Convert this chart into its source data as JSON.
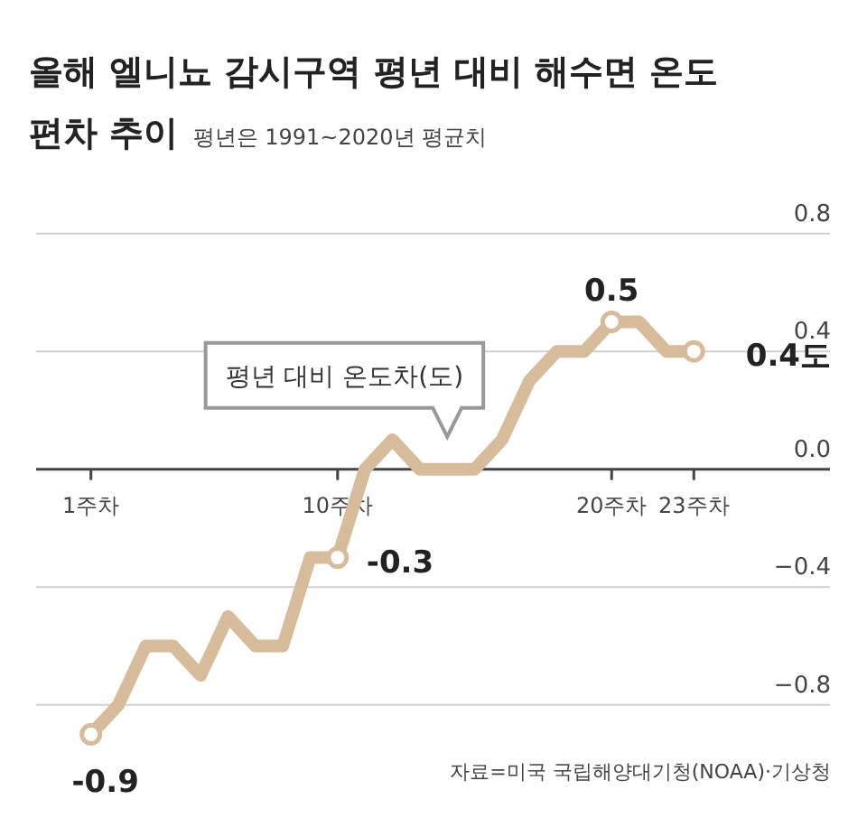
{
  "chart_data": {
    "type": "line",
    "title": "올해 엘니뇨 감시구역 평년 대비 해수면 온도 편차 추이",
    "subtitle": "평년은 1991~2020년 평균치",
    "x": [
      1,
      2,
      3,
      4,
      5,
      6,
      7,
      8,
      9,
      10,
      11,
      12,
      13,
      14,
      15,
      16,
      17,
      18,
      19,
      20,
      21,
      22,
      23
    ],
    "series": [
      {
        "name": "평년 대비 온도차(도)",
        "color": "#d6bc9a",
        "values": [
          -0.9,
          -0.8,
          -0.6,
          -0.6,
          -0.7,
          -0.5,
          -0.6,
          -0.6,
          -0.3,
          -0.3,
          0,
          0.1,
          0,
          0,
          0,
          0.1,
          0.3,
          0.4,
          0.4,
          0.5,
          0.5,
          0.4,
          0.4
        ]
      }
    ],
    "xlim": [
      -1,
      28
    ],
    "xticks": [
      {
        "value": 1,
        "label": "1주차"
      },
      {
        "value": 10,
        "label": "10주차"
      },
      {
        "value": 20,
        "label": "20주차"
      },
      {
        "value": 23,
        "label": "23주차"
      }
    ],
    "ylim": [
      -1,
      0.9
    ],
    "yticks": [
      {
        "value": -0.8,
        "label": "−0.8"
      },
      {
        "value": -0.4,
        "label": "−0.4"
      },
      {
        "value": 0,
        "label": "0.0"
      },
      {
        "value": 0.4,
        "label": "0.4"
      },
      {
        "value": 0.8,
        "label": "0.8"
      }
    ],
    "grid": "y",
    "legend": false,
    "marker": "none",
    "line_style": "solid",
    "annotations": [
      {
        "text": "-0.9",
        "x": 1,
        "y": -0.9
      },
      {
        "text": "-0.3",
        "x": 10,
        "y": -0.3
      },
      {
        "text": "0.5",
        "x": 20,
        "y": 0.5
      },
      {
        "text": "0.4도",
        "x": 23,
        "y": 0.4
      },
      "자료=미국 국립해양대기청(NOAA)·기상청"
    ]
  }
}
